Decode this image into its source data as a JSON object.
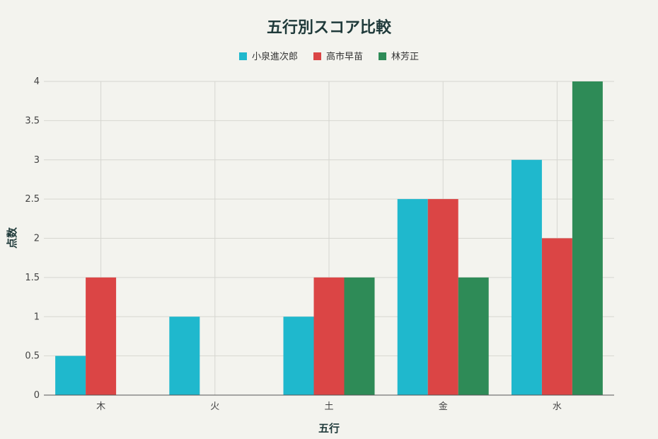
{
  "chart_data": {
    "type": "bar",
    "title": "五行別スコア比較",
    "xlabel": "五行",
    "ylabel": "点数",
    "categories": [
      "木",
      "火",
      "土",
      "金",
      "水"
    ],
    "series": [
      {
        "name": "小泉進次郎",
        "color": "#1fb8cd",
        "values": [
          0.5,
          1,
          1,
          2.5,
          3
        ]
      },
      {
        "name": "高市早苗",
        "color": "#db4545",
        "values": [
          1.5,
          0,
          1.5,
          2.5,
          2
        ]
      },
      {
        "name": "林芳正",
        "color": "#2e8b57",
        "values": [
          0,
          0,
          1.5,
          1.5,
          4
        ]
      }
    ],
    "ylim": [
      0,
      4
    ],
    "yticks": [
      "0",
      "0.5",
      "1",
      "1.5",
      "2",
      "2.5",
      "3",
      "3.5",
      "4"
    ],
    "grid": true,
    "legend_position": "top-center"
  }
}
